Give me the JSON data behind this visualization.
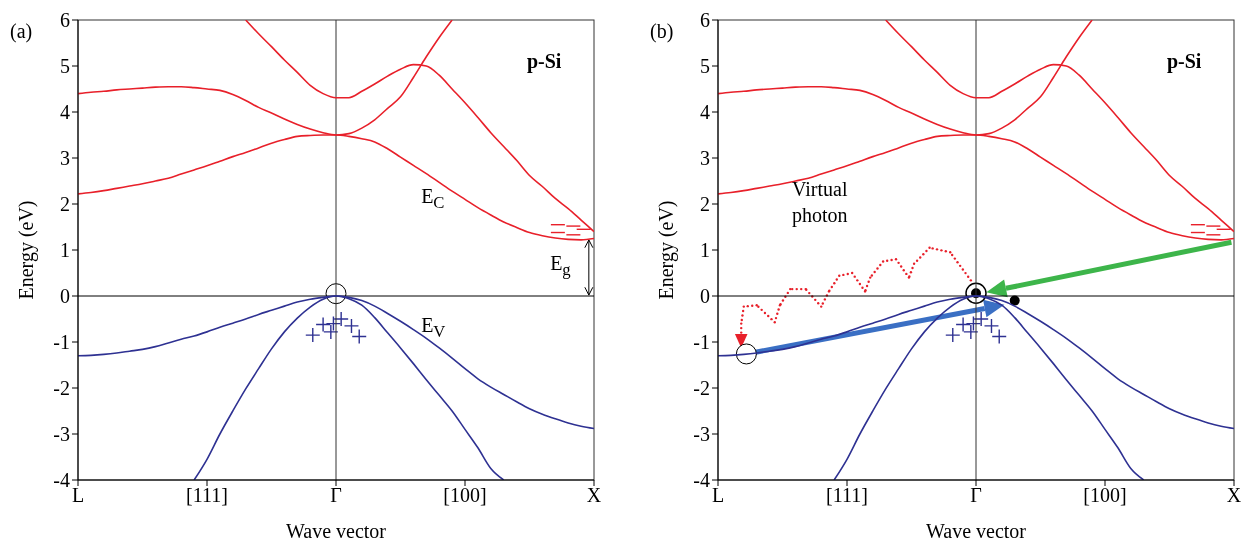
{
  "chart_data": [
    {
      "type": "line",
      "xlabel": "Wave vector",
      "ylabel": "Energy  (eV)",
      "marker": "none",
      "line_style": "solid",
      "categories": [
        "L",
        null,
        null,
        null,
        null,
        null,
        null,
        null,
        null,
        null,
        "[111]",
        null,
        null,
        null,
        null,
        null,
        null,
        null,
        null,
        null,
        "Γ",
        null,
        null,
        null,
        null,
        null,
        null,
        null,
        null,
        null,
        "[100]",
        null,
        null,
        null,
        null,
        null,
        null,
        null,
        null,
        null,
        "X"
      ],
      "ylim": [
        -4,
        6
      ],
      "yticks": [
        -4,
        -3,
        -2,
        -1,
        0,
        1,
        2,
        3,
        4,
        5,
        6
      ],
      "series": [
        {
          "color": "#e8202a",
          "values": [
            4.4,
            4.43,
            4.45,
            4.48,
            4.5,
            4.52,
            4.54,
            4.55,
            4.55,
            4.53,
            4.5,
            4.47,
            4.38,
            4.25,
            4.1,
            3.98,
            3.85,
            3.73,
            3.63,
            3.55,
            3.5,
            3.53,
            3.65,
            3.83,
            4.08,
            4.33,
            4.75,
            5.2,
            5.62,
            6,
            null,
            null,
            null,
            null,
            null,
            null,
            null,
            null,
            null,
            null,
            null
          ]
        },
        {
          "color": "#e8202a",
          "values": [
            2.22,
            2.25,
            2.29,
            2.34,
            2.39,
            2.44,
            2.5,
            2.56,
            2.65,
            2.74,
            2.83,
            2.93,
            3.03,
            3.12,
            3.22,
            3.32,
            3.4,
            3.47,
            3.49,
            3.5,
            3.5,
            3.47,
            3.42,
            3.35,
            3.2,
            3.02,
            2.84,
            2.66,
            2.47,
            2.28,
            2.1,
            1.92,
            1.76,
            1.61,
            1.49,
            1.38,
            1.31,
            1.26,
            1.23,
            1.22,
            1.25
          ]
        },
        {
          "color": "#e8202a",
          "values": [
            null,
            null,
            null,
            null,
            null,
            null,
            null,
            null,
            null,
            null,
            null,
            null,
            null,
            6,
            5.7,
            5.42,
            5.13,
            4.86,
            4.58,
            4.4,
            4.31,
            4.31,
            4.45,
            4.61,
            4.78,
            4.93,
            5.03,
            5.0,
            4.8,
            4.5,
            4.2,
            3.88,
            3.55,
            3.25,
            2.95,
            2.62,
            2.38,
            2.12,
            1.9,
            1.65,
            1.4
          ]
        },
        {
          "color": "#2e3192",
          "values": [
            -1.3,
            -1.29,
            -1.27,
            -1.24,
            -1.2,
            -1.16,
            -1.1,
            -1.02,
            -0.94,
            -0.87,
            -0.78,
            -0.68,
            -0.59,
            -0.5,
            -0.4,
            -0.31,
            -0.22,
            -0.13,
            -0.07,
            -0.03,
            0,
            -0.03,
            -0.1,
            -0.22,
            -0.38,
            -0.55,
            -0.73,
            -0.92,
            -1.13,
            -1.35,
            -1.58,
            -1.8,
            -1.98,
            -2.14,
            -2.3,
            -2.45,
            -2.57,
            -2.67,
            -2.76,
            -2.83,
            -2.88
          ]
        },
        {
          "color": "#2e3192",
          "values": [
            null,
            null,
            null,
            null,
            null,
            null,
            null,
            null,
            null,
            -4,
            -3.55,
            -3.0,
            -2.5,
            -2.02,
            -1.58,
            -1.15,
            -0.78,
            -0.48,
            -0.24,
            -0.07,
            0,
            -0.06,
            -0.2,
            -0.47,
            -0.8,
            -1.13,
            -1.47,
            -1.82,
            -2.16,
            -2.5,
            -2.9,
            -3.3,
            -3.75,
            -4,
            null,
            null,
            null,
            null,
            null,
            null,
            null
          ]
        }
      ],
      "ref_lines": [
        {
          "axis": "x",
          "value": "Γ",
          "color": "#333333"
        },
        {
          "axis": "y",
          "value": 0,
          "color": "#000000"
        }
      ],
      "annotations": [
        "(a)",
        "p-Si",
        "E$_{C}$",
        "E$_{V}$",
        "E$_{g}$"
      ]
    },
    {
      "type": "line",
      "xlabel": "Wave vector",
      "ylabel": "Energy  (eV)",
      "marker": "none",
      "line_style": "solid",
      "categories": [
        "L",
        null,
        null,
        null,
        null,
        null,
        null,
        null,
        null,
        null,
        "[111]",
        null,
        null,
        null,
        null,
        null,
        null,
        null,
        null,
        null,
        "Γ",
        null,
        null,
        null,
        null,
        null,
        null,
        null,
        null,
        null,
        "[100]",
        null,
        null,
        null,
        null,
        null,
        null,
        null,
        null,
        null,
        "X"
      ],
      "ylim": [
        -4,
        6
      ],
      "yticks": [
        -4,
        -3,
        -2,
        -1,
        0,
        1,
        2,
        3,
        4,
        5,
        6
      ],
      "series": [
        {
          "color": "#e8202a",
          "values": [
            4.4,
            4.43,
            4.45,
            4.48,
            4.5,
            4.52,
            4.54,
            4.55,
            4.55,
            4.53,
            4.5,
            4.47,
            4.38,
            4.25,
            4.1,
            3.98,
            3.85,
            3.73,
            3.63,
            3.55,
            3.5,
            3.53,
            3.65,
            3.83,
            4.08,
            4.33,
            4.75,
            5.2,
            5.62,
            6,
            null,
            null,
            null,
            null,
            null,
            null,
            null,
            null,
            null,
            null,
            null
          ]
        },
        {
          "color": "#e8202a",
          "values": [
            2.22,
            2.25,
            2.29,
            2.34,
            2.39,
            2.44,
            2.5,
            2.56,
            2.65,
            2.74,
            2.83,
            2.93,
            3.03,
            3.12,
            3.22,
            3.32,
            3.4,
            3.47,
            3.49,
            3.5,
            3.5,
            3.47,
            3.42,
            3.35,
            3.2,
            3.02,
            2.84,
            2.66,
            2.47,
            2.28,
            2.1,
            1.92,
            1.76,
            1.61,
            1.49,
            1.38,
            1.31,
            1.26,
            1.23,
            1.22,
            1.25
          ]
        },
        {
          "color": "#e8202a",
          "values": [
            null,
            null,
            null,
            null,
            null,
            null,
            null,
            null,
            null,
            null,
            null,
            null,
            null,
            6,
            5.7,
            5.42,
            5.13,
            4.86,
            4.58,
            4.4,
            4.31,
            4.31,
            4.45,
            4.61,
            4.78,
            4.93,
            5.03,
            5.0,
            4.8,
            4.5,
            4.2,
            3.88,
            3.55,
            3.25,
            2.95,
            2.62,
            2.38,
            2.12,
            1.9,
            1.65,
            1.4
          ]
        },
        {
          "color": "#2e3192",
          "values": [
            -1.3,
            -1.29,
            -1.27,
            -1.24,
            -1.2,
            -1.16,
            -1.1,
            -1.02,
            -0.94,
            -0.87,
            -0.78,
            -0.68,
            -0.59,
            -0.5,
            -0.4,
            -0.31,
            -0.22,
            -0.13,
            -0.07,
            -0.03,
            0,
            -0.03,
            -0.1,
            -0.22,
            -0.38,
            -0.55,
            -0.73,
            -0.92,
            -1.13,
            -1.35,
            -1.58,
            -1.8,
            -1.98,
            -2.14,
            -2.3,
            -2.45,
            -2.57,
            -2.67,
            -2.76,
            -2.83,
            -2.88
          ]
        },
        {
          "color": "#2e3192",
          "values": [
            null,
            null,
            null,
            null,
            null,
            null,
            null,
            null,
            null,
            -4,
            -3.55,
            -3.0,
            -2.5,
            -2.02,
            -1.58,
            -1.15,
            -0.78,
            -0.48,
            -0.24,
            -0.07,
            0,
            -0.06,
            -0.2,
            -0.47,
            -0.8,
            -1.13,
            -1.47,
            -1.82,
            -2.16,
            -2.5,
            -2.9,
            -3.3,
            -3.75,
            -4,
            null,
            null,
            null,
            null,
            null,
            null,
            null
          ]
        }
      ],
      "ref_lines": [
        {
          "axis": "x",
          "value": "Γ",
          "color": "#333333"
        },
        {
          "axis": "y",
          "value": 0,
          "color": "#000000"
        }
      ],
      "annotations": [
        "(b)",
        "p-Si",
        "Virtual photon"
      ]
    }
  ]
}
